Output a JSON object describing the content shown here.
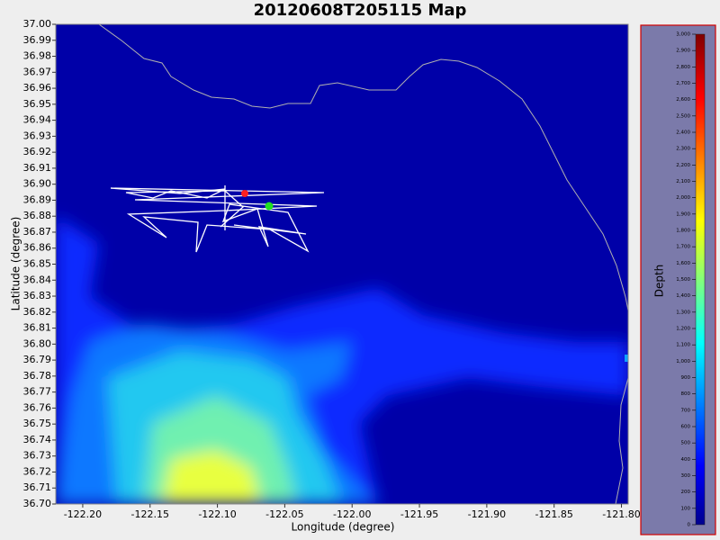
{
  "chart_data": {
    "type": "map",
    "title": "20120608T205115 Map",
    "x_label": "Longitude (degree)",
    "y_label": "Latitude (degree)",
    "xlim": [
      -122.22,
      -121.795
    ],
    "xticks": [
      {
        "value": -122.2,
        "label": "-122.20"
      },
      -122.15,
      {
        "value": -122.1,
        "label": "-122.10"
      },
      -122.05,
      {
        "value": -122,
        "label": "-122.00"
      },
      -121.95,
      {
        "value": -121.9,
        "label": "-121.90"
      },
      -121.85,
      {
        "value": -121.8,
        "label": "-121.80"
      }
    ],
    "ylim": [
      36.7,
      37.0
    ],
    "yticks": [
      {
        "value": 36.7,
        "label": "36.70"
      },
      36.71,
      36.72,
      36.73,
      36.74,
      36.75,
      36.76,
      36.77,
      36.78,
      36.79,
      {
        "value": 36.8,
        "label": "36.80"
      },
      36.81,
      36.82,
      36.83,
      36.84,
      36.85,
      36.86,
      36.87,
      36.88,
      36.89,
      {
        "value": 36.9,
        "label": "36.90"
      },
      36.91,
      36.92,
      36.93,
      36.94,
      36.95,
      36.96,
      36.97,
      36.98,
      36.99,
      {
        "value": 37,
        "label": "37.00"
      }
    ],
    "colorbar_label": "Depth",
    "colorbar_lim": [
      0,
      3000
    ],
    "colorbar_ticks": [
      0,
      100,
      200,
      300,
      400,
      500,
      600,
      700,
      800,
      900,
      {
        "value": 1000,
        "label": "1,000"
      },
      {
        "value": 1100,
        "label": "1,100"
      },
      {
        "value": 1200,
        "label": "1,200"
      },
      {
        "value": 1300,
        "label": "1,300"
      },
      {
        "value": 1400,
        "label": "1,400"
      },
      {
        "value": 1500,
        "label": "1,500"
      },
      {
        "value": 1600,
        "label": "1,600"
      },
      {
        "value": 1700,
        "label": "1,700"
      },
      {
        "value": 1800,
        "label": "1,800"
      },
      {
        "value": 1900,
        "label": "1,900"
      },
      {
        "value": 2000,
        "label": "2,000"
      },
      {
        "value": 2100,
        "label": "2,100"
      },
      {
        "value": 2200,
        "label": "2,200"
      },
      {
        "value": 2300,
        "label": "2,300"
      },
      {
        "value": 2400,
        "label": "2,400"
      },
      {
        "value": 2500,
        "label": "2,500"
      },
      {
        "value": 2600,
        "label": "2,600"
      },
      {
        "value": 2700,
        "label": "2,700"
      },
      {
        "value": 2800,
        "label": "2,800"
      },
      {
        "value": 2900,
        "label": "2,900"
      },
      {
        "value": 3000,
        "label": "3,000"
      }
    ]
  }
}
